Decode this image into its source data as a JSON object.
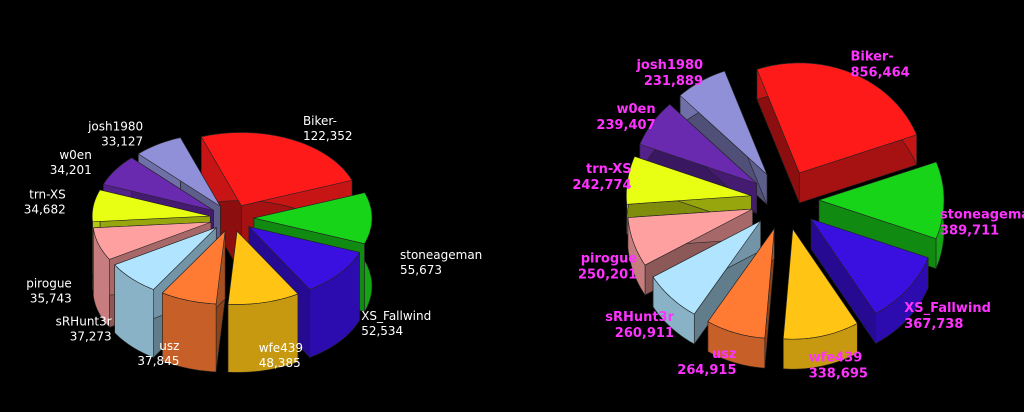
{
  "colors": {
    "background": "#000000",
    "left_label": "#ffffff",
    "right_label": "#ff33ff"
  },
  "chart_data": [
    {
      "type": "pie",
      "style": "3d-exploded",
      "slices": [
        {
          "label": "Biker-",
          "value_text": "122,352",
          "value": 122352,
          "color": "#ff1a1a"
        },
        {
          "label": "stoneageman",
          "value_text": "55,673",
          "value": 55673,
          "color": "#18d418"
        },
        {
          "label": "XS_Fallwind",
          "value_text": "52,534",
          "value": 52534,
          "color": "#3a10e0"
        },
        {
          "label": "wfe439",
          "value_text": "48,385",
          "value": 48385,
          "color": "#ffc414"
        },
        {
          "label": "usz",
          "value_text": "37,845",
          "value": 37845,
          "color": "#ff7a33"
        },
        {
          "label": "sRHunt3r",
          "value_text": "37,273",
          "value": 37273,
          "color": "#b0e4ff"
        },
        {
          "label": "pirogue",
          "value_text": "35,743",
          "value": 35743,
          "color": "#ffa0a0"
        },
        {
          "label": "trn-XS",
          "value_text": "34,682",
          "value": 34682,
          "color": "#e8ff14"
        },
        {
          "label": "w0en",
          "value_text": "34,201",
          "value": 34201,
          "color": "#6a2ab0"
        },
        {
          "label": "josh1980",
          "value_text": "33,127",
          "value": 33127,
          "color": "#9090d8"
        }
      ]
    },
    {
      "type": "pie",
      "style": "3d-exploded",
      "slices": [
        {
          "label": "Biker-",
          "value_text": "856,464",
          "value": 856464,
          "color": "#ff1a1a"
        },
        {
          "label": "stoneageman",
          "value_text": "389,711",
          "value": 389711,
          "color": "#18d418"
        },
        {
          "label": "XS_Fallwind",
          "value_text": "367,738",
          "value": 367738,
          "color": "#3a10e0"
        },
        {
          "label": "wfe439",
          "value_text": "338,695",
          "value": 338695,
          "color": "#ffc414"
        },
        {
          "label": "usz",
          "value_text": "264,915",
          "value": 264915,
          "color": "#ff7a33"
        },
        {
          "label": "sRHunt3r",
          "value_text": "260,911",
          "value": 260911,
          "color": "#b0e4ff"
        },
        {
          "label": "pirogue",
          "value_text": "250,201",
          "value": 250201,
          "color": "#ffa0a0"
        },
        {
          "label": "trn-XS",
          "value_text": "242,774",
          "value": 242774,
          "color": "#e8ff14"
        },
        {
          "label": "w0en",
          "value_text": "239,407",
          "value": 239407,
          "color": "#6a2ab0"
        },
        {
          "label": "josh1980",
          "value_text": "231,889",
          "value": 231889,
          "color": "#9090d8"
        }
      ]
    }
  ]
}
